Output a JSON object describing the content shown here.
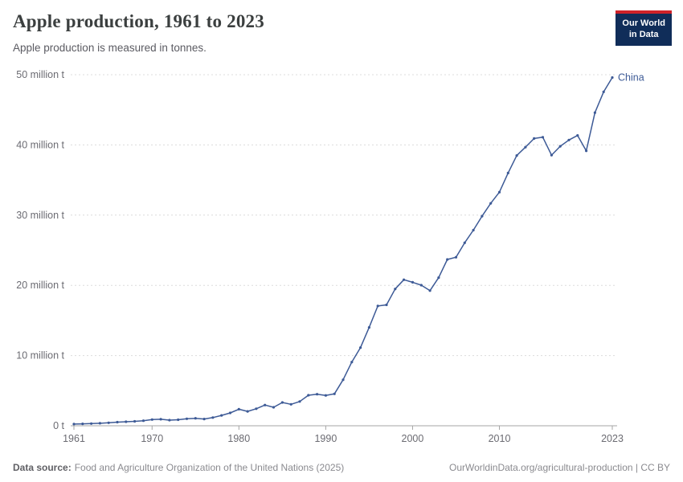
{
  "header": {
    "title": "Apple production, 1961 to 2023",
    "subtitle": "Apple production is measured in tonnes.",
    "logo": {
      "line1": "Our World",
      "line2": "in Data"
    }
  },
  "footer": {
    "source_label": "Data source:",
    "source_text": "Food and Agriculture Organization of the United Nations (2025)",
    "right_text": "OurWorldinData.org/agricultural-production | CC BY"
  },
  "chart_data": {
    "type": "line",
    "title": "Apple production, 1961 to 2023",
    "subtitle": "Apple production is measured in tonnes.",
    "value_unit": "million tonnes",
    "x_min": 1961,
    "x_max": 2023,
    "ylim": [
      0,
      50
    ],
    "grid": "dashed-horizontal",
    "legend_position": "end-of-line-label",
    "x_ticks": [
      "1961",
      "1970",
      "1980",
      "1990",
      "2000",
      "2010",
      "2023"
    ],
    "y_ticks": [
      {
        "value": 0,
        "label": "0 t"
      },
      {
        "value": 10,
        "label": "10 million t"
      },
      {
        "value": 20,
        "label": "20 million t"
      },
      {
        "value": 30,
        "label": "30 million t"
      },
      {
        "value": 40,
        "label": "40 million t"
      },
      {
        "value": 50,
        "label": "50 million t"
      }
    ],
    "series": [
      {
        "name": "China",
        "color": "#3d5a96",
        "points": [
          [
            1961,
            0.24
          ],
          [
            1962,
            0.27
          ],
          [
            1963,
            0.31
          ],
          [
            1964,
            0.36
          ],
          [
            1965,
            0.42
          ],
          [
            1966,
            0.51
          ],
          [
            1967,
            0.57
          ],
          [
            1968,
            0.63
          ],
          [
            1969,
            0.72
          ],
          [
            1970,
            0.88
          ],
          [
            1971,
            0.93
          ],
          [
            1972,
            0.8
          ],
          [
            1973,
            0.86
          ],
          [
            1974,
            1.0
          ],
          [
            1975,
            1.06
          ],
          [
            1976,
            0.96
          ],
          [
            1977,
            1.17
          ],
          [
            1978,
            1.48
          ],
          [
            1979,
            1.83
          ],
          [
            1980,
            2.36
          ],
          [
            1981,
            2.05
          ],
          [
            1982,
            2.42
          ],
          [
            1983,
            2.95
          ],
          [
            1984,
            2.63
          ],
          [
            1985,
            3.32
          ],
          [
            1986,
            3.05
          ],
          [
            1987,
            3.46
          ],
          [
            1988,
            4.35
          ],
          [
            1989,
            4.5
          ],
          [
            1990,
            4.32
          ],
          [
            1991,
            4.54
          ],
          [
            1992,
            6.56
          ],
          [
            1993,
            9.07
          ],
          [
            1994,
            11.13
          ],
          [
            1995,
            14.01
          ],
          [
            1996,
            17.06
          ],
          [
            1997,
            17.22
          ],
          [
            1998,
            19.49
          ],
          [
            1999,
            20.8
          ],
          [
            2000,
            20.44
          ],
          [
            2001,
            20.02
          ],
          [
            2002,
            19.25
          ],
          [
            2003,
            21.1
          ],
          [
            2004,
            23.68
          ],
          [
            2005,
            24.01
          ],
          [
            2006,
            26.06
          ],
          [
            2007,
            27.86
          ],
          [
            2008,
            29.85
          ],
          [
            2009,
            31.68
          ],
          [
            2010,
            33.27
          ],
          [
            2011,
            35.99
          ],
          [
            2012,
            38.49
          ],
          [
            2013,
            39.68
          ],
          [
            2014,
            40.92
          ],
          [
            2015,
            41.1
          ],
          [
            2016,
            38.55
          ],
          [
            2017,
            39.8
          ],
          [
            2018,
            40.7
          ],
          [
            2019,
            41.35
          ],
          [
            2020,
            39.15
          ],
          [
            2021,
            44.6
          ],
          [
            2022,
            47.55
          ],
          [
            2023,
            49.6
          ]
        ]
      }
    ]
  }
}
